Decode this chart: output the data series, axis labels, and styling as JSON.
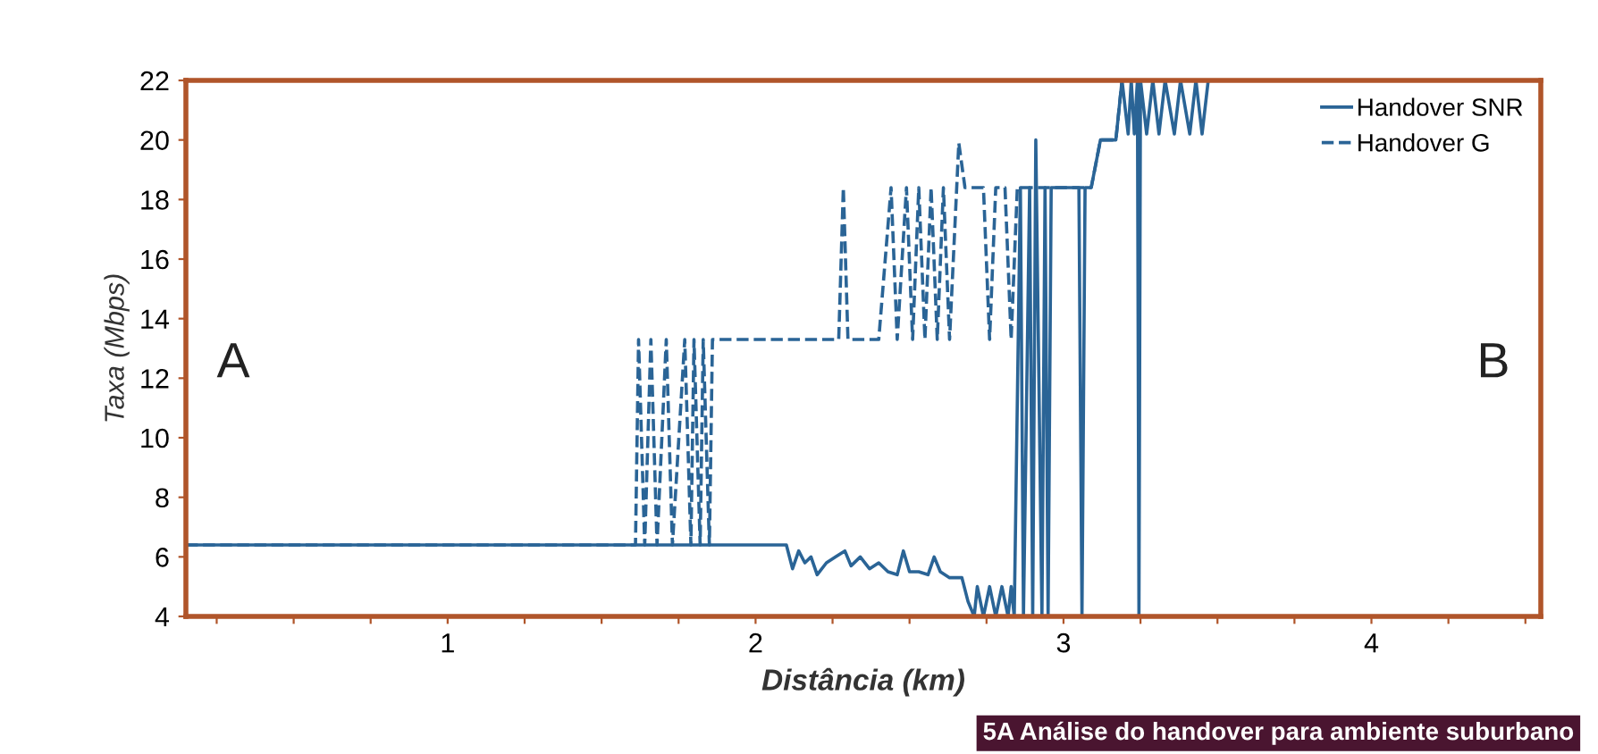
{
  "chart_data": {
    "type": "line",
    "xlabel": "Distância (km)",
    "ylabel": "Taxa (Mbps)",
    "xlim": [
      0.15,
      4.55
    ],
    "ylim": [
      4,
      22
    ],
    "xticks": [
      {
        "value": 0.25,
        "label": null
      },
      {
        "value": 0.5,
        "label": null
      },
      {
        "value": 0.75,
        "label": null
      },
      1,
      {
        "value": 1.25,
        "label": null
      },
      {
        "value": 1.5,
        "label": null
      },
      {
        "value": 1.75,
        "label": null
      },
      2,
      {
        "value": 2.25,
        "label": null
      },
      {
        "value": 2.5,
        "label": null
      },
      {
        "value": 2.75,
        "label": null
      },
      3,
      {
        "value": 3.25,
        "label": null
      },
      {
        "value": 3.5,
        "label": null
      },
      {
        "value": 3.75,
        "label": null
      },
      4,
      {
        "value": 4.25,
        "label": null
      },
      {
        "value": 4.5,
        "label": null
      }
    ],
    "yticks": [
      4,
      6,
      8,
      10,
      12,
      14,
      16,
      18,
      20,
      22
    ],
    "grid": false,
    "legend": "top right",
    "marker": "none",
    "series": [
      {
        "name": "Handover G",
        "color": "#2a6496",
        "line_style": "dashed",
        "x": [
          0.15,
          1.61,
          1.62,
          1.64,
          1.66,
          1.68,
          1.71,
          1.73,
          1.77,
          1.79,
          1.8,
          1.82,
          1.83,
          1.85,
          1.86,
          2.27,
          2.285,
          2.3,
          2.4,
          2.44,
          2.46,
          2.49,
          2.51,
          2.53,
          2.55,
          2.57,
          2.59,
          2.61,
          2.63,
          2.66,
          2.68,
          2.74,
          2.76,
          2.78,
          2.81,
          2.83,
          2.85,
          3.07,
          3.09,
          3.12,
          3.17,
          3.19,
          3.47
        ],
        "values": [
          6.4,
          6.4,
          13.3,
          6.4,
          13.3,
          6.4,
          13.3,
          6.4,
          13.3,
          6.4,
          13.3,
          6.4,
          13.3,
          6.4,
          13.3,
          13.3,
          18.4,
          13.3,
          13.3,
          18.4,
          13.3,
          18.4,
          13.3,
          18.4,
          13.3,
          18.4,
          13.3,
          18.4,
          13.3,
          19.9,
          18.4,
          18.4,
          13.3,
          18.4,
          18.4,
          13.3,
          18.4,
          18.4,
          18.4,
          20.0,
          20.0,
          22,
          22
        ]
      },
      {
        "name": "Handover SNR",
        "color": "#2a6496",
        "line_style": "solid",
        "x": [
          0.15,
          2.1,
          2.12,
          2.14,
          2.16,
          2.18,
          2.2,
          2.23,
          2.26,
          2.29,
          2.31,
          2.34,
          2.37,
          2.4,
          2.43,
          2.46,
          2.48,
          2.5,
          2.53,
          2.56,
          2.58,
          2.6,
          2.63,
          2.67,
          2.69,
          2.71,
          2.72,
          2.74,
          2.76,
          2.78,
          2.8,
          2.82,
          2.83,
          2.84,
          2.86,
          2.87,
          2.89,
          2.9,
          2.91,
          2.93,
          2.94,
          2.95,
          2.96,
          3.05,
          3.06,
          3.07,
          3.09,
          3.12,
          3.17,
          3.19,
          3.21,
          3.22,
          3.23,
          3.24,
          3.245,
          3.25,
          3.27,
          3.29,
          3.31,
          3.33,
          3.36,
          3.38,
          3.41,
          3.43,
          3.45,
          3.47
        ],
        "values": [
          6.4,
          6.4,
          5.6,
          6.2,
          5.8,
          6.0,
          5.4,
          5.8,
          6.0,
          6.2,
          5.7,
          6.0,
          5.6,
          5.8,
          5.5,
          5.4,
          6.2,
          5.5,
          5.5,
          5.4,
          6.0,
          5.5,
          5.3,
          5.3,
          4.5,
          4.0,
          5.0,
          4.0,
          5.0,
          4.0,
          5.0,
          4.0,
          5.0,
          4.0,
          18.4,
          4.0,
          18.4,
          4.0,
          20.0,
          4.0,
          18.4,
          4.0,
          18.4,
          18.4,
          4.0,
          18.4,
          18.4,
          20.0,
          20.0,
          22,
          20.2,
          22,
          20.2,
          22,
          4.0,
          22,
          20.2,
          22,
          20.2,
          22,
          20.2,
          22,
          20.2,
          22,
          20.2,
          22
        ]
      }
    ],
    "annotations": [
      "A",
      "B",
      "5A Análise do handover para ambiente suburbano"
    ]
  }
}
